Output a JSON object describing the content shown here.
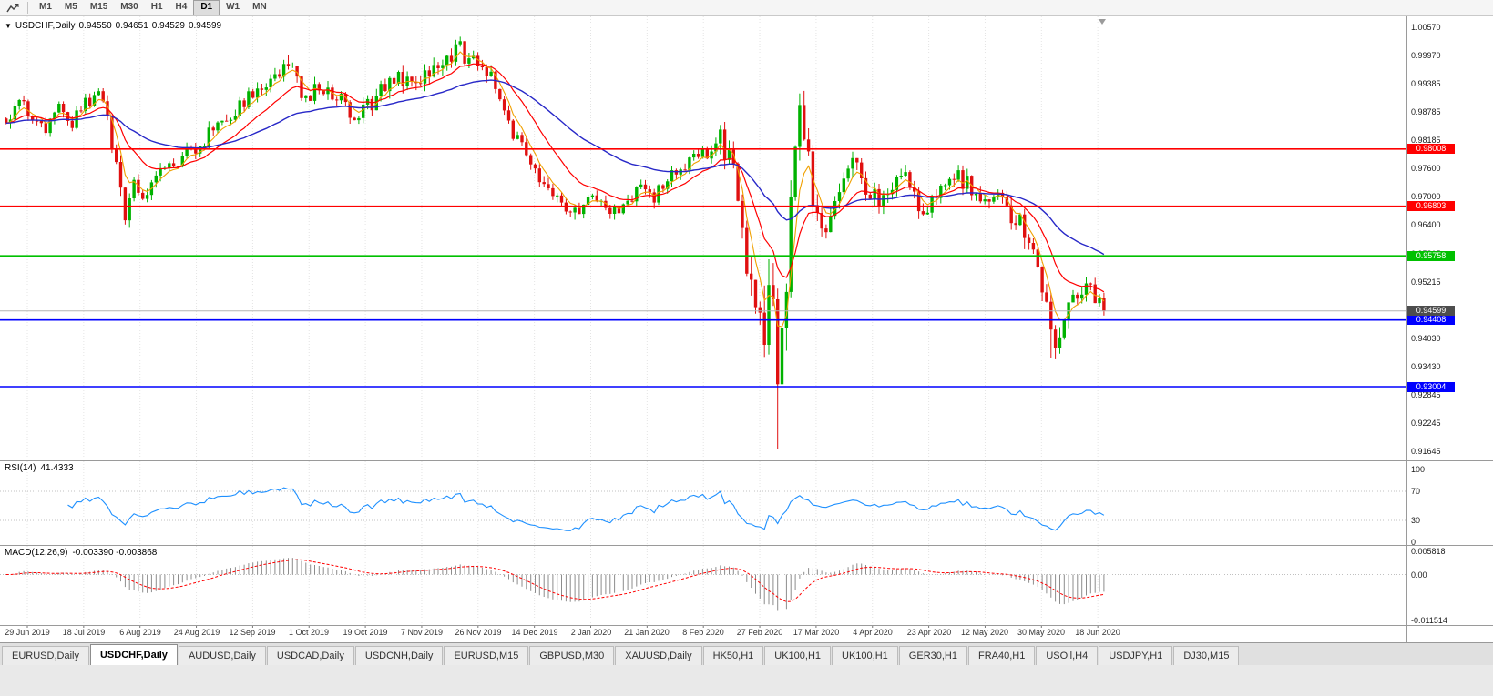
{
  "toolbar": {
    "timeframes": [
      "M1",
      "M5",
      "M15",
      "M30",
      "H1",
      "H4",
      "D1",
      "W1",
      "MN"
    ],
    "active_timeframe": "D1"
  },
  "chart": {
    "header": {
      "collapse_icon": "▼",
      "symbol": "USDCHF,Daily",
      "open": "0.94550",
      "high": "0.94651",
      "low": "0.94529",
      "close": "0.94599"
    },
    "price_axis": {
      "top_price": 1.0057,
      "bottom_price": 0.91645,
      "labels": [
        "1.00570",
        "0.99970",
        "0.99385",
        "0.98785",
        "0.98185",
        "0.97600",
        "0.97000",
        "0.96400",
        "0.95815",
        "0.95215",
        "0.94630",
        "0.94030",
        "0.93430",
        "0.92845",
        "0.92245",
        "0.91645"
      ]
    },
    "hlines": [
      {
        "text": "0.98008",
        "price": 0.98008,
        "color": "#ff0000"
      },
      {
        "text": "0.96803",
        "price": 0.96803,
        "color": "#ff0000"
      },
      {
        "text": "0.95758",
        "price": 0.95758,
        "color": "#00c000"
      },
      {
        "text": "0.94408",
        "price": 0.94408,
        "color": "#0000ff"
      },
      {
        "text": "0.93004",
        "price": 0.93004,
        "color": "#0000ff"
      }
    ],
    "bid": {
      "text": "0.94599",
      "price": 0.94599,
      "line_color": "#b4b4b4",
      "label_bg": "#4d4d4d"
    },
    "dates": [
      "29 Jun 2019",
      "18 Jul 2019",
      "6 Aug 2019",
      "24 Aug 2019",
      "12 Sep 2019",
      "1 Oct 2019",
      "19 Oct 2019",
      "7 Nov 2019",
      "26 Nov 2019",
      "14 Dec 2019",
      "2 Jan 2020",
      "21 Jan 2020",
      "8 Feb 2020",
      "27 Feb 2020",
      "17 Mar 2020",
      "4 Apr 2020",
      "23 Apr 2020",
      "12 May 2020",
      "30 May 2020",
      "18 Jun 2020"
    ],
    "colors": {
      "up": "#00b200",
      "down": "#e01010",
      "ma_fast": "#f0a000",
      "ma_mid": "#ff0000",
      "ma_slow": "#2828c8"
    },
    "ma_periods": {
      "fast": 5,
      "mid": 15,
      "slow": 45
    },
    "candles": {
      "type": "candlestick",
      "count": 250,
      "last_close": 0.94599,
      "close_waypoints": [
        [
          0,
          0.9865
        ],
        [
          3,
          0.9895
        ],
        [
          6,
          0.987
        ],
        [
          9,
          0.9845
        ],
        [
          12,
          0.9885
        ],
        [
          15,
          0.986
        ],
        [
          18,
          0.9895
        ],
        [
          21,
          0.992
        ],
        [
          23,
          0.987
        ],
        [
          25,
          0.976
        ],
        [
          27,
          0.9672
        ],
        [
          29,
          0.9718
        ],
        [
          31,
          0.97
        ],
        [
          34,
          0.9745
        ],
        [
          37,
          0.976
        ],
        [
          40,
          0.9782
        ],
        [
          44,
          0.981
        ],
        [
          48,
          0.9858
        ],
        [
          51,
          0.9875
        ],
        [
          54,
          0.9905
        ],
        [
          58,
          0.994
        ],
        [
          61,
          0.9958
        ],
        [
          64,
          0.9975
        ],
        [
          66,
          0.9945
        ],
        [
          68,
          0.9905
        ],
        [
          71,
          0.993
        ],
        [
          74,
          0.992
        ],
        [
          77,
          0.989
        ],
        [
          80,
          0.9868
        ],
        [
          83,
          0.99
        ],
        [
          86,
          0.9935
        ],
        [
          89,
          0.9955
        ],
        [
          92,
          0.9938
        ],
        [
          95,
          0.9965
        ],
        [
          98,
          0.9985
        ],
        [
          101,
          1.0
        ],
        [
          103,
          1.001
        ],
        [
          105,
          0.998
        ],
        [
          107,
          0.9992
        ],
        [
          110,
          0.995
        ],
        [
          112,
          0.9895
        ],
        [
          114,
          0.9845
        ],
        [
          117,
          0.9802
        ],
        [
          120,
          0.976
        ],
        [
          123,
          0.9705
        ],
        [
          126,
          0.9682
        ],
        [
          129,
          0.9668
        ],
        [
          132,
          0.97
        ],
        [
          135,
          0.9688
        ],
        [
          138,
          0.9672
        ],
        [
          141,
          0.9695
        ],
        [
          144,
          0.972
        ],
        [
          147,
          0.9702
        ],
        [
          150,
          0.9738
        ],
        [
          153,
          0.9762
        ],
        [
          156,
          0.978
        ],
        [
          159,
          0.9795
        ],
        [
          162,
          0.9833
        ],
        [
          164,
          0.978
        ],
        [
          166,
          0.9692
        ],
        [
          168,
          0.958
        ],
        [
          170,
          0.95
        ],
        [
          172,
          0.943
        ],
        [
          174,
          0.9475
        ],
        [
          175,
          0.936
        ],
        [
          176,
          0.943
        ],
        [
          177,
          0.9555
        ],
        [
          178,
          0.97
        ],
        [
          179,
          0.9815
        ],
        [
          180,
          0.9872
        ],
        [
          181,
          0.9845
        ],
        [
          183,
          0.9705
        ],
        [
          185,
          0.9622
        ],
        [
          187,
          0.966
        ],
        [
          189,
          0.973
        ],
        [
          192,
          0.9768
        ],
        [
          195,
          0.9722
        ],
        [
          198,
          0.9688
        ],
        [
          201,
          0.9728
        ],
        [
          204,
          0.9748
        ],
        [
          206,
          0.9702
        ],
        [
          208,
          0.9645
        ],
        [
          210,
          0.9688
        ],
        [
          213,
          0.9715
        ],
        [
          216,
          0.9738
        ],
        [
          219,
          0.9722
        ],
        [
          222,
          0.9702
        ],
        [
          225,
          0.969
        ],
        [
          228,
          0.9662
        ],
        [
          231,
          0.9625
        ],
        [
          233,
          0.9565
        ],
        [
          235,
          0.9502
        ],
        [
          237,
          0.942
        ],
        [
          239,
          0.9392
        ],
        [
          241,
          0.9455
        ],
        [
          243,
          0.9502
        ],
        [
          245,
          0.9522
        ],
        [
          247,
          0.9492
        ],
        [
          249,
          0.94599
        ]
      ],
      "vol_waypoints": [
        [
          0,
          0.0038
        ],
        [
          22,
          0.004
        ],
        [
          25,
          0.0065
        ],
        [
          31,
          0.004
        ],
        [
          60,
          0.0042
        ],
        [
          100,
          0.0048
        ],
        [
          112,
          0.004
        ],
        [
          158,
          0.0036
        ],
        [
          164,
          0.009
        ],
        [
          170,
          0.013
        ],
        [
          174,
          0.02
        ],
        [
          176,
          0.016
        ],
        [
          179,
          0.013
        ],
        [
          182,
          0.009
        ],
        [
          186,
          0.007
        ],
        [
          195,
          0.005
        ],
        [
          225,
          0.0048
        ],
        [
          233,
          0.0075
        ],
        [
          238,
          0.008
        ],
        [
          243,
          0.0055
        ],
        [
          249,
          0.0045
        ]
      ],
      "spikes": [
        {
          "i": 27,
          "low": 0.9655
        },
        {
          "i": 64,
          "high": 0.9998
        },
        {
          "i": 103,
          "high": 1.0028
        },
        {
          "i": 129,
          "low": 0.9652
        },
        {
          "i": 175,
          "low": 0.917
        },
        {
          "i": 180,
          "high": 0.9893
        },
        {
          "i": 237,
          "low": 0.936
        }
      ]
    }
  },
  "rsi": {
    "label": "RSI(14)",
    "value": "41.4333",
    "color": "#1e90ff",
    "levels": [
      70,
      30
    ],
    "axis_labels": [
      "100",
      "70",
      "30",
      "0"
    ]
  },
  "macd": {
    "label": "MACD(12,26,9)",
    "value": "-0.003390 -0.003868",
    "hist_color": "#8c8c8c",
    "signal_color": "#ff0000",
    "axis_labels": [
      {
        "text": "0.005818",
        "v": 0.005818
      },
      {
        "text": "0.00",
        "v": 0
      },
      {
        "text": "-0.011514",
        "v": -0.011514
      }
    ]
  },
  "tabs": {
    "active_index": 1,
    "items": [
      "EURUSD,Daily",
      "USDCHF,Daily",
      "AUDUSD,Daily",
      "USDCAD,Daily",
      "USDCNH,Daily",
      "EURUSD,M15",
      "GBPUSD,M30",
      "XAUUSD,Daily",
      "HK50,H1",
      "UK100,H1",
      "UK100,H1",
      "GER30,H1",
      "FRA40,H1",
      "USOil,H4",
      "USDJPY,H1",
      "DJ30,M15"
    ]
  }
}
